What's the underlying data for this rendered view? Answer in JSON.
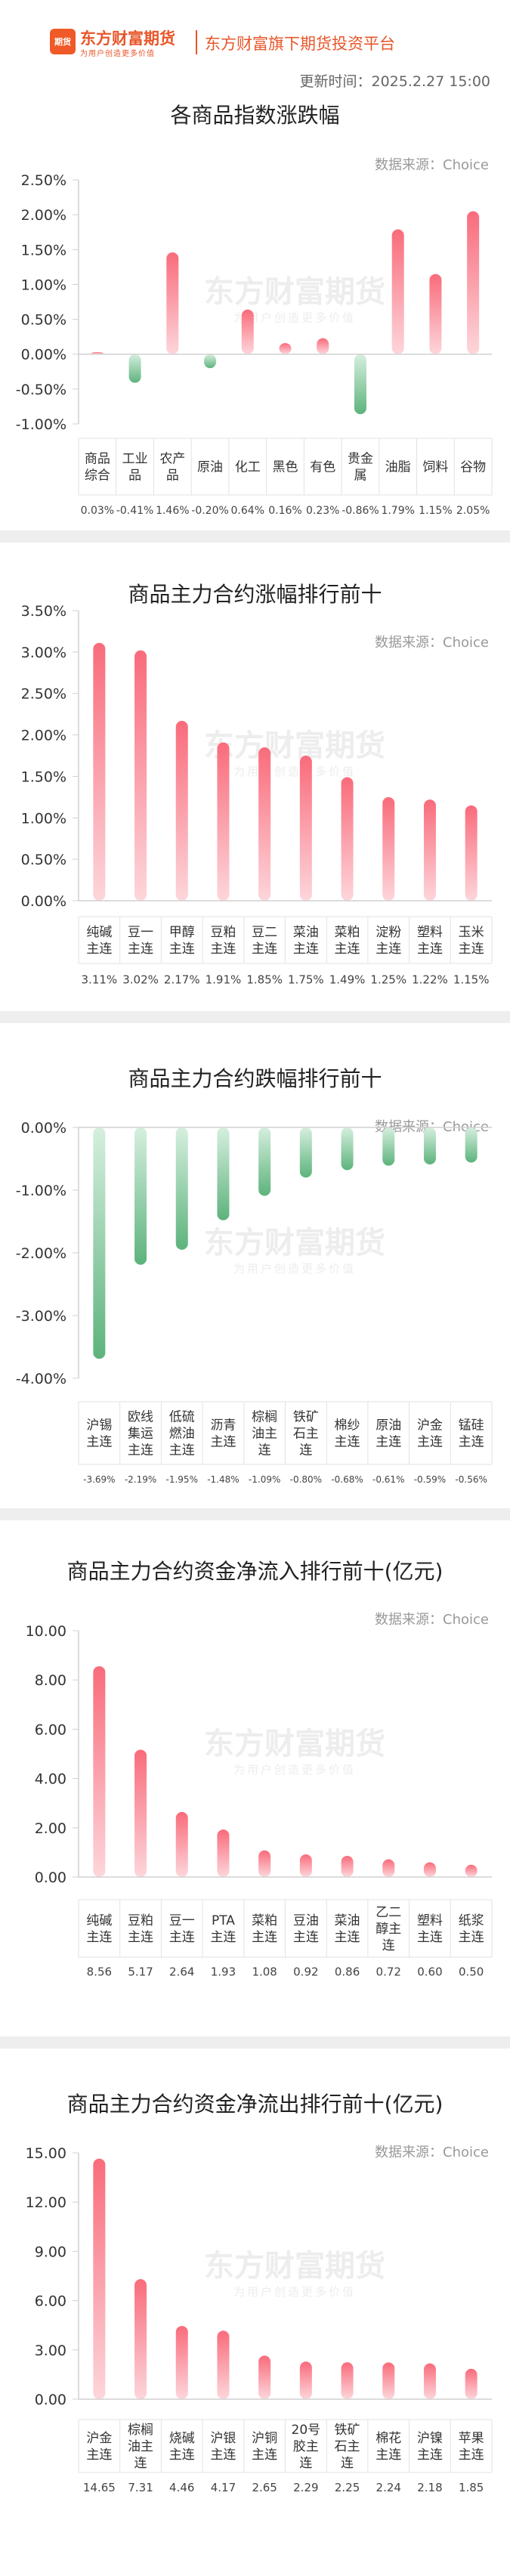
{
  "header": {
    "brand_name": "东方财富期货",
    "brand_slogan": "为用户创造更多价值",
    "logo_text": "期货",
    "platform": "东方财富旗下期货投资平台",
    "update_time": "更新时间：2025.2.27 15:00"
  },
  "watermark": {
    "main": "东方财富期货",
    "sub": "为用户创造更多价值"
  },
  "colors": {
    "rise_top": "#f96b7b",
    "rise_bottom": "#fdd6db",
    "fall_top": "#d6efdf",
    "fall_bottom": "#5db37c",
    "axis": "#d0d0d0",
    "grid": "#e4e4e4",
    "cell_border": "#e2e2e2"
  },
  "chart_data": [
    {
      "id": "c1",
      "type": "bar",
      "title": "各商品指数涨跌幅",
      "source": "数据来源：Choice",
      "categories": [
        "商品\n综合",
        "工业\n品",
        "农产\n品",
        "原油",
        "化工",
        "黑色",
        "有色",
        "贵金\n属",
        "油脂",
        "饲料",
        "谷物"
      ],
      "values": [
        0.03,
        -0.41,
        1.46,
        -0.2,
        0.64,
        0.16,
        0.23,
        -0.86,
        1.79,
        1.15,
        2.05
      ],
      "value_labels": [
        "0.03%",
        "-0.41%",
        "1.46%",
        "-0.20%",
        "0.64%",
        "0.16%",
        "0.23%",
        "-0.86%",
        "1.79%",
        "1.15%",
        "2.05%"
      ],
      "yticks": [
        2.5,
        2.0,
        1.5,
        1.0,
        0.5,
        0.0,
        -0.5,
        -1.0
      ],
      "ytick_labels": [
        "2.50%",
        "2.00%",
        "1.50%",
        "1.00%",
        "0.50%",
        "0.00%",
        "-0.50%",
        "-1.00%"
      ],
      "ylim": [
        -1.0,
        2.5
      ],
      "grid": false,
      "xlabel": "",
      "ylabel": ""
    },
    {
      "id": "c2",
      "type": "bar",
      "title": "商品主力合约涨幅排行前十",
      "source": "数据来源：Choice",
      "categories": [
        "纯碱\n主连",
        "豆一\n主连",
        "甲醇\n主连",
        "豆粕\n主连",
        "豆二\n主连",
        "菜油\n主连",
        "菜粕\n主连",
        "淀粉\n主连",
        "塑料\n主连",
        "玉米\n主连"
      ],
      "values": [
        3.11,
        3.02,
        2.17,
        1.91,
        1.85,
        1.75,
        1.49,
        1.25,
        1.22,
        1.15
      ],
      "value_labels": [
        "3.11%",
        "3.02%",
        "2.17%",
        "1.91%",
        "1.85%",
        "1.75%",
        "1.49%",
        "1.25%",
        "1.22%",
        "1.15%"
      ],
      "yticks": [
        3.5,
        3.0,
        2.5,
        2.0,
        1.5,
        1.0,
        0.5,
        0.0
      ],
      "ytick_labels": [
        "3.50%",
        "3.00%",
        "2.50%",
        "2.00%",
        "1.50%",
        "1.00%",
        "0.50%",
        "0.00%"
      ],
      "ylim": [
        0,
        3.5
      ],
      "grid": false,
      "xlabel": "",
      "ylabel": ""
    },
    {
      "id": "c3",
      "type": "bar",
      "title": "商品主力合约跌幅排行前十",
      "source": "数据来源：Choice",
      "categories": [
        "沪锡\n主连",
        "欧线\n集运\n主连",
        "低硫\n燃油\n主连",
        "沥青\n主连",
        "棕榈\n油主\n连",
        "铁矿\n石主\n连",
        "棉纱\n主连",
        "原油\n主连",
        "沪金\n主连",
        "锰硅\n主连"
      ],
      "values": [
        -3.69,
        -2.19,
        -1.95,
        -1.48,
        -1.09,
        -0.8,
        -0.68,
        -0.61,
        -0.59,
        -0.56
      ],
      "value_labels": [
        "-3.69%",
        "-2.19%",
        "-1.95%",
        "-1.48%",
        "-1.09%",
        "-0.80%",
        "-0.68%",
        "-0.61%",
        "-0.59%",
        "-0.56%"
      ],
      "yticks": [
        0.0,
        -1.0,
        -2.0,
        -3.0,
        -4.0
      ],
      "ytick_labels": [
        "0.00%",
        "-1.00%",
        "-2.00%",
        "-3.00%",
        "-4.00%"
      ],
      "ylim": [
        -4.0,
        0
      ],
      "grid": false,
      "xlabel": "",
      "ylabel": ""
    },
    {
      "id": "c4",
      "type": "bar",
      "title": "商品主力合约资金净流入排行前十(亿元)",
      "source": "数据来源：Choice",
      "categories": [
        "纯碱\n主连",
        "豆粕\n主连",
        "豆一\n主连",
        "PTA\n主连",
        "菜粕\n主连",
        "豆油\n主连",
        "菜油\n主连",
        "乙二\n醇主\n连",
        "塑料\n主连",
        "纸浆\n主连"
      ],
      "values": [
        8.56,
        5.17,
        2.64,
        1.93,
        1.08,
        0.92,
        0.86,
        0.72,
        0.6,
        0.5
      ],
      "value_labels": [
        "8.56",
        "5.17",
        "2.64",
        "1.93",
        "1.08",
        "0.92",
        "0.86",
        "0.72",
        "0.60",
        "0.50"
      ],
      "yticks": [
        10,
        8,
        6,
        4,
        2,
        0
      ],
      "ytick_labels": [
        "10.00",
        "8.00",
        "6.00",
        "4.00",
        "2.00",
        "0.00"
      ],
      "ylim": [
        0,
        10
      ],
      "grid": false,
      "xlabel": "",
      "ylabel": ""
    },
    {
      "id": "c5",
      "type": "bar",
      "title": "商品主力合约资金净流出排行前十(亿元)",
      "source": "数据来源：Choice",
      "categories": [
        "沪金\n主连",
        "棕榈\n油主\n连",
        "烧碱\n主连",
        "沪银\n主连",
        "沪铜\n主连",
        "20号\n胶主\n连",
        "铁矿\n石主\n连",
        "棉花\n主连",
        "沪镍\n主连",
        "苹果\n主连"
      ],
      "values": [
        14.65,
        7.31,
        4.46,
        4.17,
        2.65,
        2.29,
        2.25,
        2.24,
        2.18,
        1.85
      ],
      "value_labels": [
        "14.65",
        "7.31",
        "4.46",
        "4.17",
        "2.65",
        "2.29",
        "2.25",
        "2.24",
        "2.18",
        "1.85"
      ],
      "yticks": [
        15,
        12,
        9,
        6,
        3,
        0
      ],
      "ytick_labels": [
        "15.00",
        "12.00",
        "9.00",
        "6.00",
        "3.00",
        "0.00"
      ],
      "ylim": [
        0,
        15
      ],
      "grid": false,
      "xlabel": "",
      "ylabel": ""
    }
  ]
}
